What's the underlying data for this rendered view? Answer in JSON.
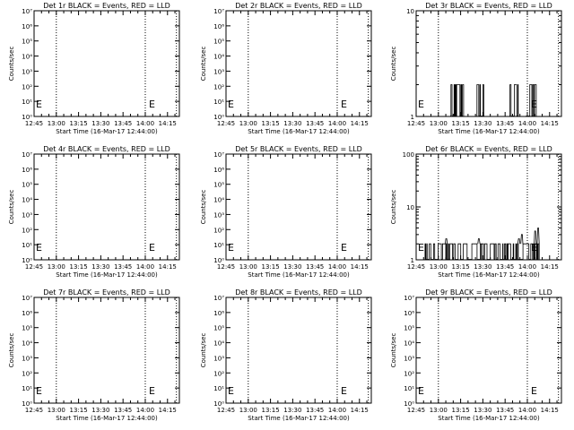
{
  "figure": {
    "x_ticks": [
      "12:45",
      "13:00",
      "13:15",
      "13:30",
      "13:45",
      "14:00",
      "14:15"
    ],
    "x_tick_minutes": [
      0,
      15,
      30,
      45,
      60,
      75,
      90
    ],
    "x_range_minutes": [
      0,
      98
    ],
    "dotted_lines_minutes": [
      15,
      75,
      96
    ],
    "marker_letter": "E",
    "marker_minute": 78,
    "colors": {
      "events": "#000000",
      "lld": "#ff0000"
    }
  },
  "chart_data": [
    {
      "type": "line",
      "title": "Det 1r BLACK = Events, RED = LLD",
      "xlabel": "Start Time (16-Mar-17 12:44:00)",
      "ylabel": "Counts/sec",
      "yscale": "log",
      "ylim": [
        1,
        10000000
      ],
      "y_ticks": [
        "10⁰",
        "10¹",
        "10²",
        "10³",
        "10⁴",
        "10⁵",
        "10⁶",
        "10⁷"
      ],
      "series": []
    },
    {
      "type": "line",
      "title": "Det 2r BLACK = Events, RED = LLD",
      "xlabel": "Start Time (16-Mar-17 12:44:00)",
      "ylabel": "Counts/sec",
      "yscale": "log",
      "ylim": [
        1,
        10000000
      ],
      "y_ticks": [
        "10⁰",
        "10¹",
        "10²",
        "10³",
        "10⁴",
        "10⁵",
        "10⁶",
        "10⁷"
      ],
      "series": []
    },
    {
      "type": "line",
      "title": "Det 3r BLACK = Events, RED = LLD",
      "xlabel": "Start Time (16-Mar-17 12:44:00)",
      "ylabel": "Counts/sec",
      "yscale": "log",
      "ylim": [
        1,
        10
      ],
      "y_ticks": [
        "1",
        "10"
      ],
      "series": [
        {
          "style": "bursts",
          "value": 2,
          "bursts": [
            [
              23,
              32
            ],
            [
              41,
              46
            ],
            [
              63,
              69
            ],
            [
              74,
              81
            ]
          ]
        }
      ]
    },
    {
      "type": "line",
      "title": "Det 4r BLACK = Events, RED = LLD",
      "xlabel": "Start Time (16-Mar-17 12:44:00)",
      "ylabel": "Counts/sec",
      "yscale": "log",
      "ylim": [
        1,
        10000000
      ],
      "y_ticks": [
        "10⁰",
        "10¹",
        "10²",
        "10³",
        "10⁴",
        "10⁵",
        "10⁶",
        "10⁷"
      ],
      "series": []
    },
    {
      "type": "line",
      "title": "Det 5r BLACK = Events, RED = LLD",
      "xlabel": "Start Time (16-Mar-17 12:44:00)",
      "ylabel": "Counts/sec",
      "yscale": "log",
      "ylim": [
        1,
        10000000
      ],
      "y_ticks": [
        "10⁰",
        "10¹",
        "10²",
        "10³",
        "10⁴",
        "10⁵",
        "10⁶",
        "10⁷"
      ],
      "series": []
    },
    {
      "type": "line",
      "title": "Det 6r BLACK = Events, RED = LLD",
      "xlabel": "Start Time (16-Mar-17 12:44:00)",
      "ylabel": "Counts/sec",
      "yscale": "log",
      "ylim": [
        1,
        100
      ],
      "y_ticks": [
        "1",
        "10",
        "100"
      ],
      "series": [
        {
          "style": "bursts",
          "value": 2,
          "bursts": [
            [
              6,
              83
            ]
          ],
          "peaks": [
            [
              20,
              2.5
            ],
            [
              42,
              2.5
            ],
            [
              69,
              2.5
            ],
            [
              71,
              3.0
            ],
            [
              80,
              3.5
            ],
            [
              82,
              4.0
            ]
          ]
        }
      ]
    },
    {
      "type": "line",
      "title": "Det 7r BLACK = Events, RED = LLD",
      "xlabel": "Start Time (16-Mar-17 12:44:00)",
      "ylabel": "Counts/sec",
      "yscale": "log",
      "ylim": [
        1,
        10000000
      ],
      "y_ticks": [
        "10⁰",
        "10¹",
        "10²",
        "10³",
        "10⁴",
        "10⁵",
        "10⁶",
        "10⁷"
      ],
      "series": []
    },
    {
      "type": "line",
      "title": "Det 8r BLACK = Events, RED = LLD",
      "xlabel": "Start Time (16-Mar-17 12:44:00)",
      "ylabel": "Counts/sec",
      "yscale": "log",
      "ylim": [
        1,
        10000000
      ],
      "y_ticks": [
        "10⁰",
        "10¹",
        "10²",
        "10³",
        "10⁴",
        "10⁵",
        "10⁶",
        "10⁷"
      ],
      "series": []
    },
    {
      "type": "line",
      "title": "Det 9r BLACK = Events, RED = LLD",
      "xlabel": "Start Time (16-Mar-17 12:44:00)",
      "ylabel": "Counts/sec",
      "yscale": "log",
      "ylim": [
        1,
        10000000
      ],
      "y_ticks": [
        "10⁰",
        "10¹",
        "10²",
        "10³",
        "10⁴",
        "10⁵",
        "10⁶",
        "10⁷"
      ],
      "series": []
    }
  ]
}
